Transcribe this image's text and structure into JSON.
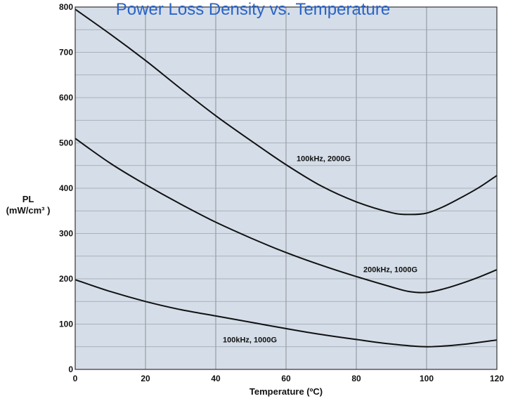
{
  "chart_data": {
    "type": "line",
    "title": "Power Loss Density vs. Temperature",
    "xlabel": "Temperature (ºC)",
    "ylabel_line1": "PL",
    "ylabel_line2": "(mW/cm³ )",
    "xlim": [
      0,
      120
    ],
    "ylim": [
      0,
      800
    ],
    "x_ticks": [
      0,
      20,
      40,
      60,
      80,
      100,
      120
    ],
    "y_ticks": [
      0,
      100,
      200,
      300,
      400,
      500,
      600,
      700,
      800
    ],
    "grid": true,
    "colors": {
      "plot_bg": "#d5dee8",
      "grid_major": "#8a8f96",
      "grid_minor": "#9aa3ad",
      "line": "#111111",
      "title": "#2b63c6"
    },
    "series": [
      {
        "name": "100kHz, 2000G",
        "x": [
          0,
          10,
          20,
          30,
          40,
          50,
          60,
          70,
          80,
          90,
          95,
          100,
          105,
          110,
          115,
          120
        ],
        "y": [
          795,
          740,
          682,
          620,
          560,
          505,
          452,
          405,
          370,
          346,
          342,
          345,
          360,
          380,
          402,
          428
        ]
      },
      {
        "name": "200kHz, 1000G",
        "x": [
          0,
          10,
          20,
          30,
          40,
          50,
          60,
          70,
          80,
          90,
          95,
          100,
          105,
          110,
          115,
          120
        ],
        "y": [
          510,
          455,
          408,
          365,
          325,
          290,
          258,
          230,
          205,
          182,
          172,
          170,
          178,
          190,
          204,
          220
        ]
      },
      {
        "name": "100kHz, 1000G",
        "x": [
          0,
          10,
          20,
          30,
          40,
          50,
          60,
          70,
          80,
          90,
          100,
          110,
          120
        ],
        "y": [
          198,
          172,
          150,
          132,
          118,
          104,
          90,
          77,
          66,
          56,
          50,
          55,
          65
        ]
      }
    ]
  }
}
